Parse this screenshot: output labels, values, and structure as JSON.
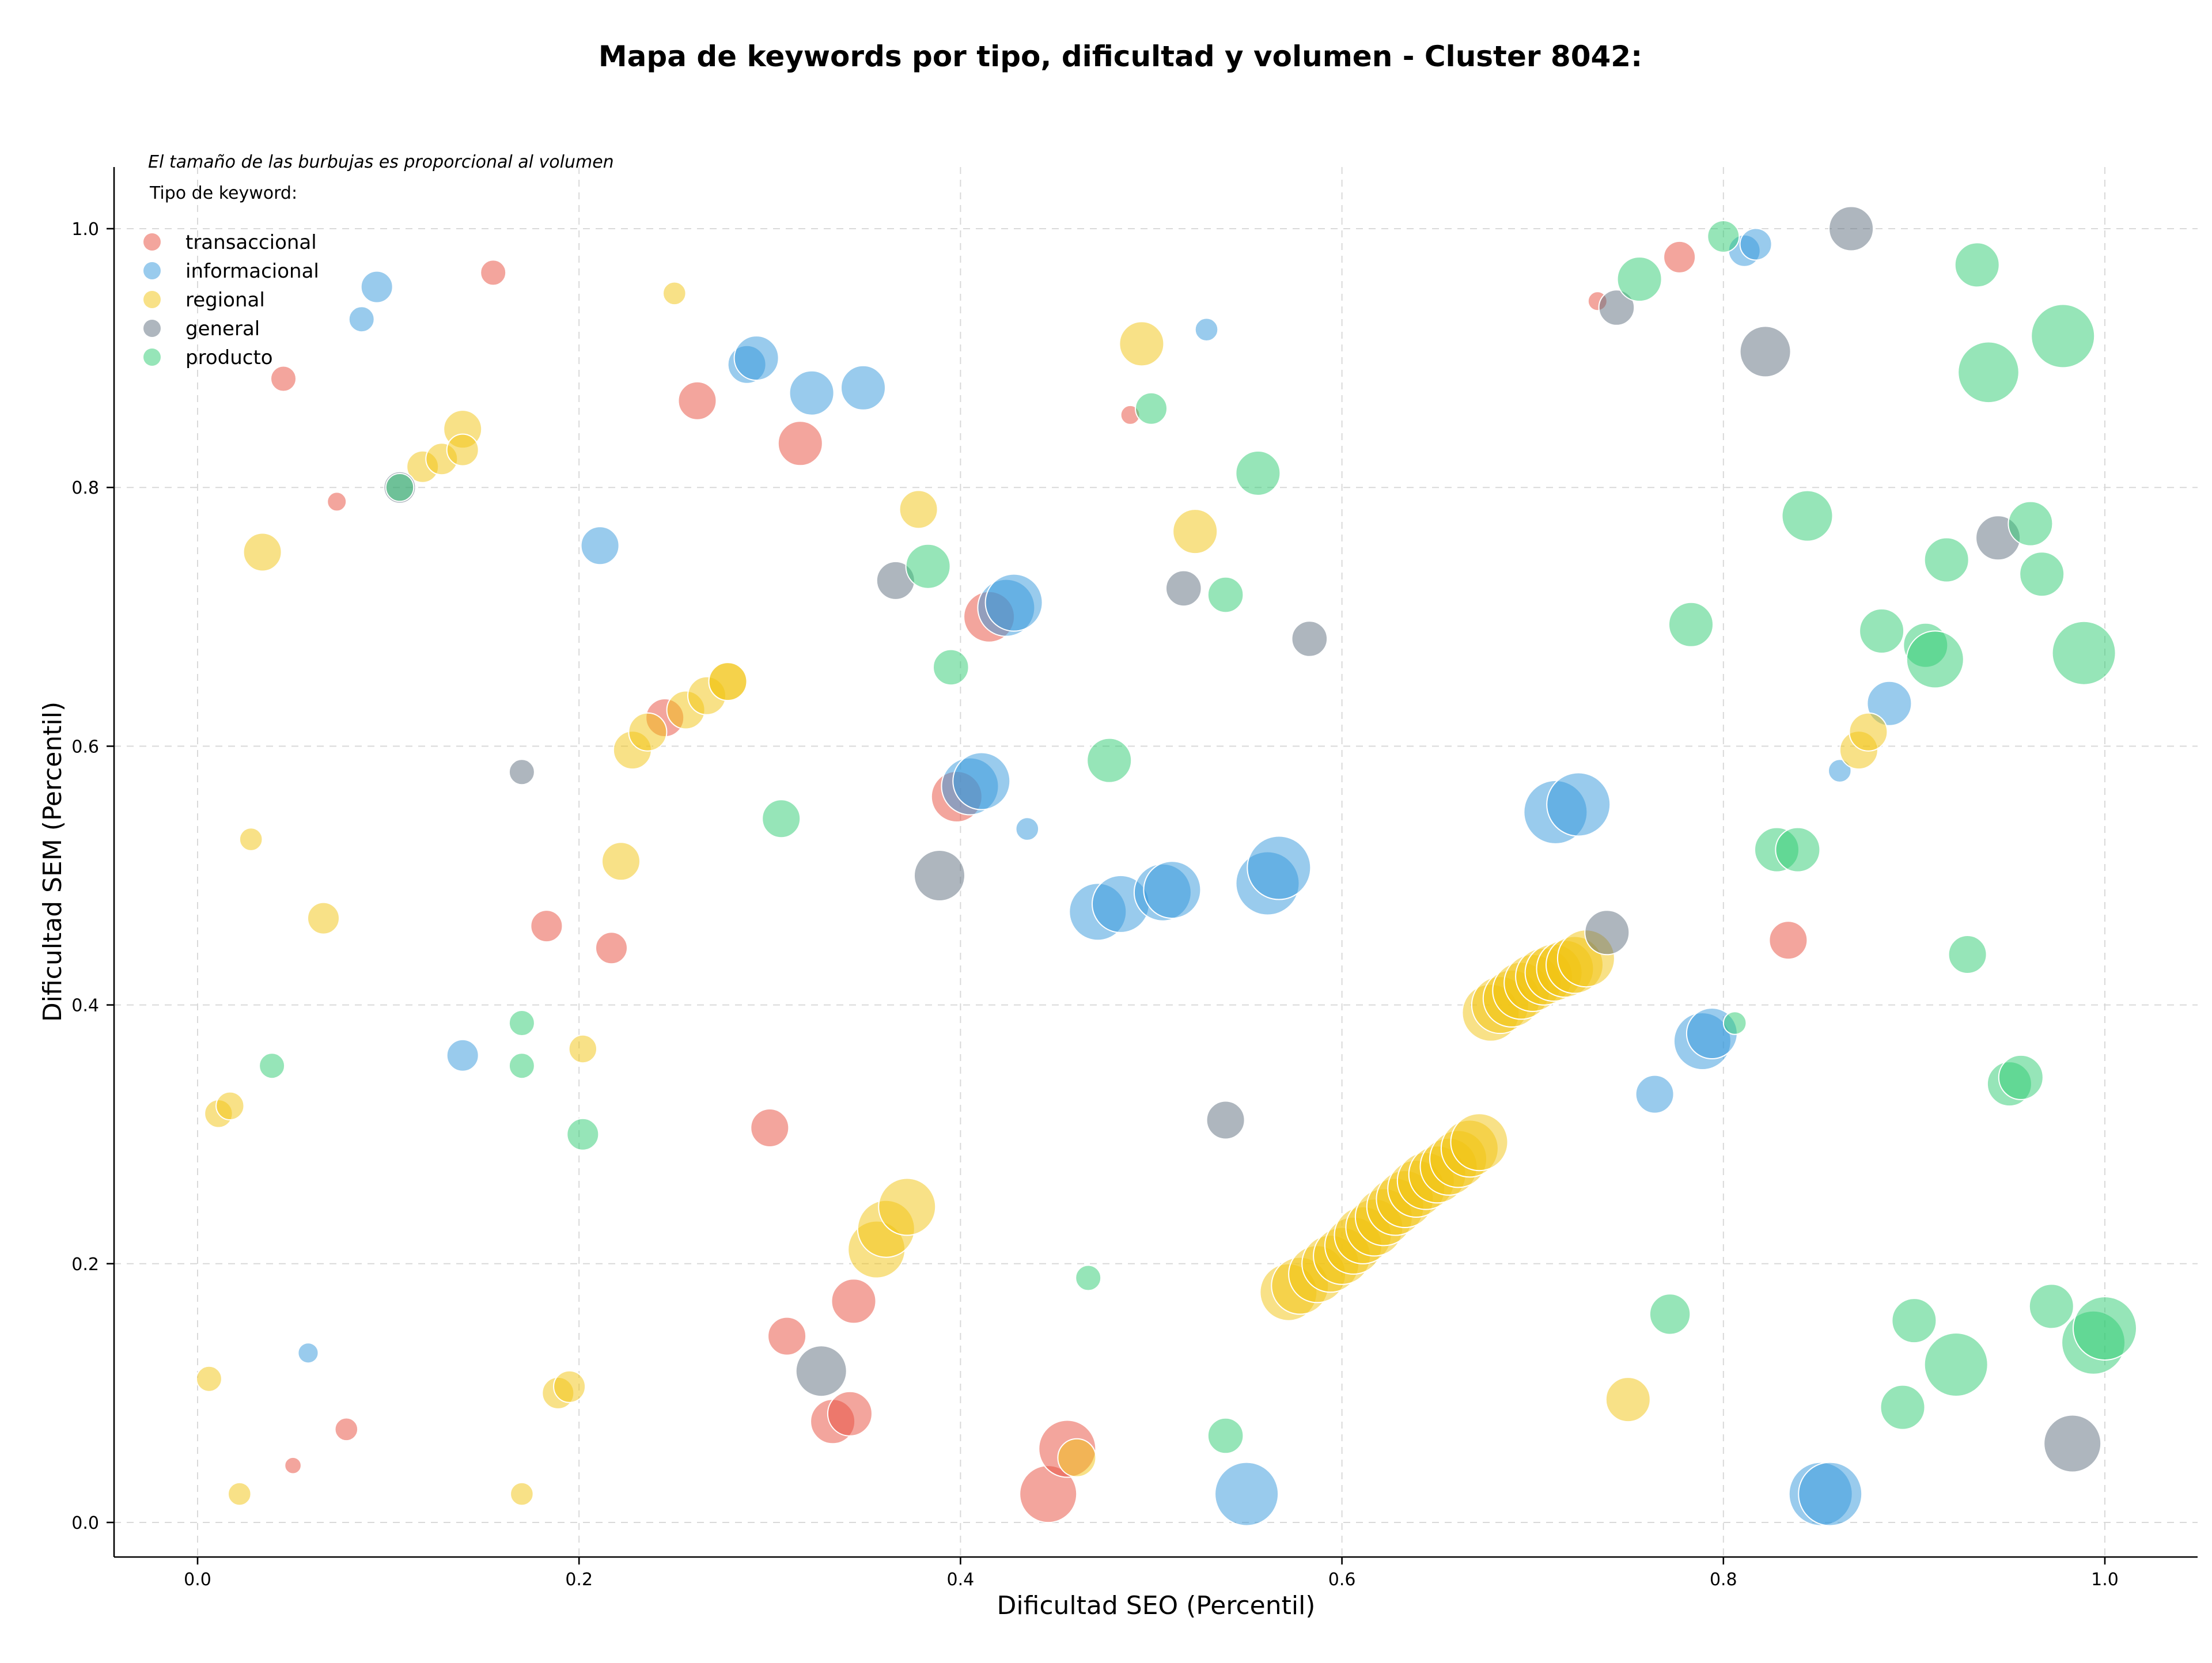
{
  "chart_data": {
    "type": "scatter",
    "title": "Mapa de keywords por tipo, dificultad y volumen - Cluster 8042:",
    "xlabel": "Dificultad SEO (Percentil)",
    "ylabel": "Dificultad SEM (Percentil)",
    "xlim": [
      -0.045,
      1.05
    ],
    "ylim": [
      -0.025,
      1.05
    ],
    "xticks": [
      "0.0",
      "0.2",
      "0.4",
      "0.6",
      "0.8",
      "1.0"
    ],
    "yticks": [
      "0.0",
      "0.2",
      "0.4",
      "0.6",
      "0.8",
      "1.0"
    ],
    "grid": true,
    "note": "El tamaño de las burbujas es proporcional al volumen",
    "legend": {
      "title": "Tipo de keyword:",
      "placement": "top-left"
    },
    "size_encoding": "radius ~ relative volume",
    "series": [
      {
        "name": "transaccional",
        "color": "#e74c3c",
        "points": [
          [
            0.155,
            0.966,
            2
          ],
          [
            0.045,
            0.884,
            2
          ],
          [
            0.073,
            0.789,
            1.5
          ],
          [
            0.262,
            0.867,
            3
          ],
          [
            0.316,
            0.834,
            3.5
          ],
          [
            0.415,
            0.7,
            4
          ],
          [
            0.398,
            0.561,
            4
          ],
          [
            0.245,
            0.622,
            3
          ],
          [
            0.183,
            0.461,
            2.5
          ],
          [
            0.217,
            0.444,
            2.5
          ],
          [
            0.3,
            0.305,
            3
          ],
          [
            0.309,
            0.144,
            3
          ],
          [
            0.344,
            0.171,
            3.5
          ],
          [
            0.333,
            0.078,
            3.5
          ],
          [
            0.342,
            0.084,
            3.5
          ],
          [
            0.446,
            0.022,
            4.5
          ],
          [
            0.456,
            0.057,
            4.5
          ],
          [
            0.078,
            0.072,
            1.8
          ],
          [
            0.05,
            0.044,
            1.3
          ],
          [
            0.489,
            0.856,
            1.5
          ],
          [
            0.734,
            0.944,
            1.5
          ],
          [
            0.777,
            0.978,
            2.5
          ],
          [
            0.834,
            0.45,
            3
          ]
        ]
      },
      {
        "name": "informacional",
        "color": "#3498db",
        "points": [
          [
            0.094,
            0.955,
            2.5
          ],
          [
            0.086,
            0.93,
            2
          ],
          [
            0.288,
            0.895,
            3
          ],
          [
            0.293,
            0.9,
            3.5
          ],
          [
            0.322,
            0.873,
            3.5
          ],
          [
            0.349,
            0.877,
            3.5
          ],
          [
            0.529,
            0.922,
            1.8
          ],
          [
            0.211,
            0.755,
            3
          ],
          [
            0.424,
            0.707,
            4.5
          ],
          [
            0.428,
            0.711,
            4.5
          ],
          [
            0.405,
            0.569,
            4.5
          ],
          [
            0.411,
            0.573,
            4.5
          ],
          [
            0.435,
            0.536,
            1.8
          ],
          [
            0.472,
            0.472,
            4.5
          ],
          [
            0.484,
            0.478,
            4.5
          ],
          [
            0.506,
            0.487,
            4.5
          ],
          [
            0.511,
            0.489,
            4.5
          ],
          [
            0.561,
            0.494,
            5
          ],
          [
            0.567,
            0.506,
            5
          ],
          [
            0.712,
            0.549,
            5
          ],
          [
            0.724,
            0.555,
            5
          ],
          [
            0.789,
            0.372,
            4.5
          ],
          [
            0.794,
            0.378,
            4
          ],
          [
            0.764,
            0.331,
            3
          ],
          [
            0.139,
            0.361,
            2.5
          ],
          [
            0.058,
            0.131,
            1.6
          ],
          [
            0.55,
            0.022,
            5
          ],
          [
            0.851,
            0.022,
            5
          ],
          [
            0.856,
            0.022,
            5
          ],
          [
            0.811,
            0.983,
            2.5
          ],
          [
            0.817,
            0.988,
            2.5
          ],
          [
            0.887,
            0.633,
            3.5
          ],
          [
            0.861,
            0.581,
            1.8
          ]
        ]
      },
      {
        "name": "regional",
        "color": "#f1c40f",
        "points": [
          [
            0.25,
            0.95,
            1.8
          ],
          [
            0.034,
            0.75,
            3
          ],
          [
            0.118,
            0.816,
            2.5
          ],
          [
            0.128,
            0.822,
            2.5
          ],
          [
            0.139,
            0.845,
            3
          ],
          [
            0.139,
            0.829,
            2.5
          ],
          [
            0.378,
            0.783,
            3
          ],
          [
            0.495,
            0.911,
            3.5
          ],
          [
            0.523,
            0.766,
            3.5
          ],
          [
            0.028,
            0.528,
            1.8
          ],
          [
            0.066,
            0.467,
            2.5
          ],
          [
            0.222,
            0.511,
            3
          ],
          [
            0.228,
            0.597,
            3
          ],
          [
            0.236,
            0.611,
            3
          ],
          [
            0.256,
            0.628,
            3
          ],
          [
            0.267,
            0.639,
            3
          ],
          [
            0.278,
            0.65,
            3
          ],
          [
            0.278,
            0.65,
            3
          ],
          [
            0.202,
            0.366,
            2.2
          ],
          [
            0.011,
            0.316,
            2.2
          ],
          [
            0.017,
            0.322,
            2.2
          ],
          [
            0.006,
            0.111,
            2
          ],
          [
            0.022,
            0.022,
            1.8
          ],
          [
            0.17,
            0.022,
            1.8
          ],
          [
            0.189,
            0.1,
            2.5
          ],
          [
            0.195,
            0.105,
            2.5
          ],
          [
            0.356,
            0.211,
            4.5
          ],
          [
            0.361,
            0.227,
            4.5
          ],
          [
            0.372,
            0.244,
            4.5
          ],
          [
            0.461,
            0.05,
            3
          ],
          [
            0.572,
            0.178,
            4.5
          ],
          [
            0.578,
            0.183,
            4.5
          ],
          [
            0.587,
            0.192,
            4.5
          ],
          [
            0.594,
            0.2,
            4.5
          ],
          [
            0.6,
            0.206,
            4.5
          ],
          [
            0.606,
            0.214,
            4.5
          ],
          [
            0.611,
            0.222,
            4.5
          ],
          [
            0.617,
            0.228,
            4.5
          ],
          [
            0.622,
            0.236,
            4.5
          ],
          [
            0.628,
            0.244,
            4.5
          ],
          [
            0.633,
            0.25,
            4.5
          ],
          [
            0.639,
            0.258,
            4.5
          ],
          [
            0.644,
            0.264,
            4.5
          ],
          [
            0.65,
            0.269,
            4.5
          ],
          [
            0.656,
            0.275,
            4.5
          ],
          [
            0.661,
            0.281,
            4.5
          ],
          [
            0.667,
            0.289,
            4.5
          ],
          [
            0.672,
            0.294,
            4.5
          ],
          [
            0.678,
            0.394,
            4.5
          ],
          [
            0.683,
            0.4,
            4.5
          ],
          [
            0.689,
            0.405,
            4.5
          ],
          [
            0.694,
            0.411,
            4.5
          ],
          [
            0.7,
            0.417,
            4.5
          ],
          [
            0.706,
            0.422,
            4.5
          ],
          [
            0.711,
            0.425,
            4.5
          ],
          [
            0.717,
            0.428,
            4.5
          ],
          [
            0.722,
            0.431,
            4.5
          ],
          [
            0.728,
            0.436,
            4.5
          ],
          [
            0.75,
            0.095,
            3.5
          ],
          [
            0.871,
            0.597,
            3
          ],
          [
            0.876,
            0.611,
            3
          ]
        ]
      },
      {
        "name": "general",
        "color": "#5d6d7e",
        "points": [
          [
            0.106,
            0.8,
            2.5
          ],
          [
            0.17,
            0.58,
            2
          ],
          [
            0.366,
            0.728,
            3
          ],
          [
            0.389,
            0.5,
            4
          ],
          [
            0.327,
            0.117,
            4
          ],
          [
            0.517,
            0.722,
            2.8
          ],
          [
            0.539,
            0.311,
            3
          ],
          [
            0.583,
            0.683,
            2.8
          ],
          [
            0.739,
            0.456,
            3.5
          ],
          [
            0.744,
            0.939,
            2.8
          ],
          [
            0.822,
            0.905,
            4
          ],
          [
            0.867,
            1.0,
            3.5
          ],
          [
            0.944,
            0.761,
            3.5
          ],
          [
            0.983,
            0.061,
            4.5
          ]
        ]
      },
      {
        "name": "producto",
        "color": "#2ecc71",
        "points": [
          [
            0.106,
            0.8,
            2.2
          ],
          [
            0.039,
            0.353,
            2
          ],
          [
            0.17,
            0.386,
            2
          ],
          [
            0.17,
            0.353,
            2
          ],
          [
            0.202,
            0.3,
            2.5
          ],
          [
            0.306,
            0.544,
            3
          ],
          [
            0.383,
            0.739,
            3.5
          ],
          [
            0.395,
            0.661,
            2.8
          ],
          [
            0.467,
            0.189,
            2
          ],
          [
            0.478,
            0.589,
            3.5
          ],
          [
            0.5,
            0.861,
            2.5
          ],
          [
            0.539,
            0.717,
            2.8
          ],
          [
            0.539,
            0.067,
            2.8
          ],
          [
            0.556,
            0.811,
            3.5
          ],
          [
            0.756,
            0.961,
            3.5
          ],
          [
            0.8,
            0.994,
            2.5
          ],
          [
            0.783,
            0.694,
            3.5
          ],
          [
            0.772,
            0.161,
            3.2
          ],
          [
            0.806,
            0.386,
            1.8
          ],
          [
            0.828,
            0.52,
            3.5
          ],
          [
            0.839,
            0.52,
            3.5
          ],
          [
            0.844,
            0.778,
            4
          ],
          [
            0.894,
            0.089,
            3.5
          ],
          [
            0.9,
            0.156,
            3.5
          ],
          [
            0.922,
            0.122,
            5
          ],
          [
            0.883,
            0.689,
            3.5
          ],
          [
            0.906,
            0.678,
            3.5
          ],
          [
            0.911,
            0.667,
            4.5
          ],
          [
            0.917,
            0.744,
            3.5
          ],
          [
            0.928,
            0.439,
            3
          ],
          [
            0.933,
            0.972,
            3.5
          ],
          [
            0.939,
            0.889,
            4.8
          ],
          [
            0.95,
            0.339,
            3.5
          ],
          [
            0.956,
            0.344,
            3.5
          ],
          [
            0.961,
            0.772,
            3.5
          ],
          [
            0.967,
            0.733,
            3.5
          ],
          [
            0.972,
            0.167,
            3.5
          ],
          [
            0.978,
            0.917,
            5
          ],
          [
            0.989,
            0.672,
            5
          ],
          [
            0.994,
            0.139,
            5
          ],
          [
            1.0,
            0.15,
            5
          ]
        ]
      }
    ]
  }
}
